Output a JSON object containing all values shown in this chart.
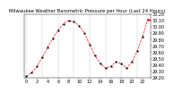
{
  "title": "Milwaukee Weather Barometric Pressure per Hour (Last 24 Hours)",
  "hours": [
    0,
    1,
    2,
    3,
    4,
    5,
    6,
    7,
    8,
    9,
    10,
    11,
    12,
    13,
    14,
    15,
    16,
    17,
    18,
    19,
    20,
    21,
    22,
    23
  ],
  "pressure": [
    29.22,
    29.28,
    29.38,
    29.52,
    29.68,
    29.82,
    29.95,
    30.05,
    30.1,
    30.08,
    30.02,
    29.9,
    29.72,
    29.55,
    29.42,
    29.35,
    29.38,
    29.45,
    29.42,
    29.35,
    29.45,
    29.62,
    29.85,
    30.12
  ],
  "line_color": "#ff0000",
  "marker_color": "#000000",
  "bg_color": "#ffffff",
  "grid_color": "#aaaaaa",
  "ylim_min": 29.2,
  "ylim_max": 30.2,
  "ytick_step": 0.1,
  "xlabel_fontsize": 3.5,
  "ylabel_fontsize": 3.5,
  "title_fontsize": 3.8,
  "xticks": [
    0,
    2,
    4,
    6,
    8,
    10,
    12,
    14,
    16,
    18,
    20,
    22
  ],
  "ytick_labels": [
    "29.20",
    "29.30",
    "29.40",
    "29.50",
    "29.60",
    "29.70",
    "29.80",
    "29.90",
    "30.00",
    "30.10",
    "30.20"
  ]
}
